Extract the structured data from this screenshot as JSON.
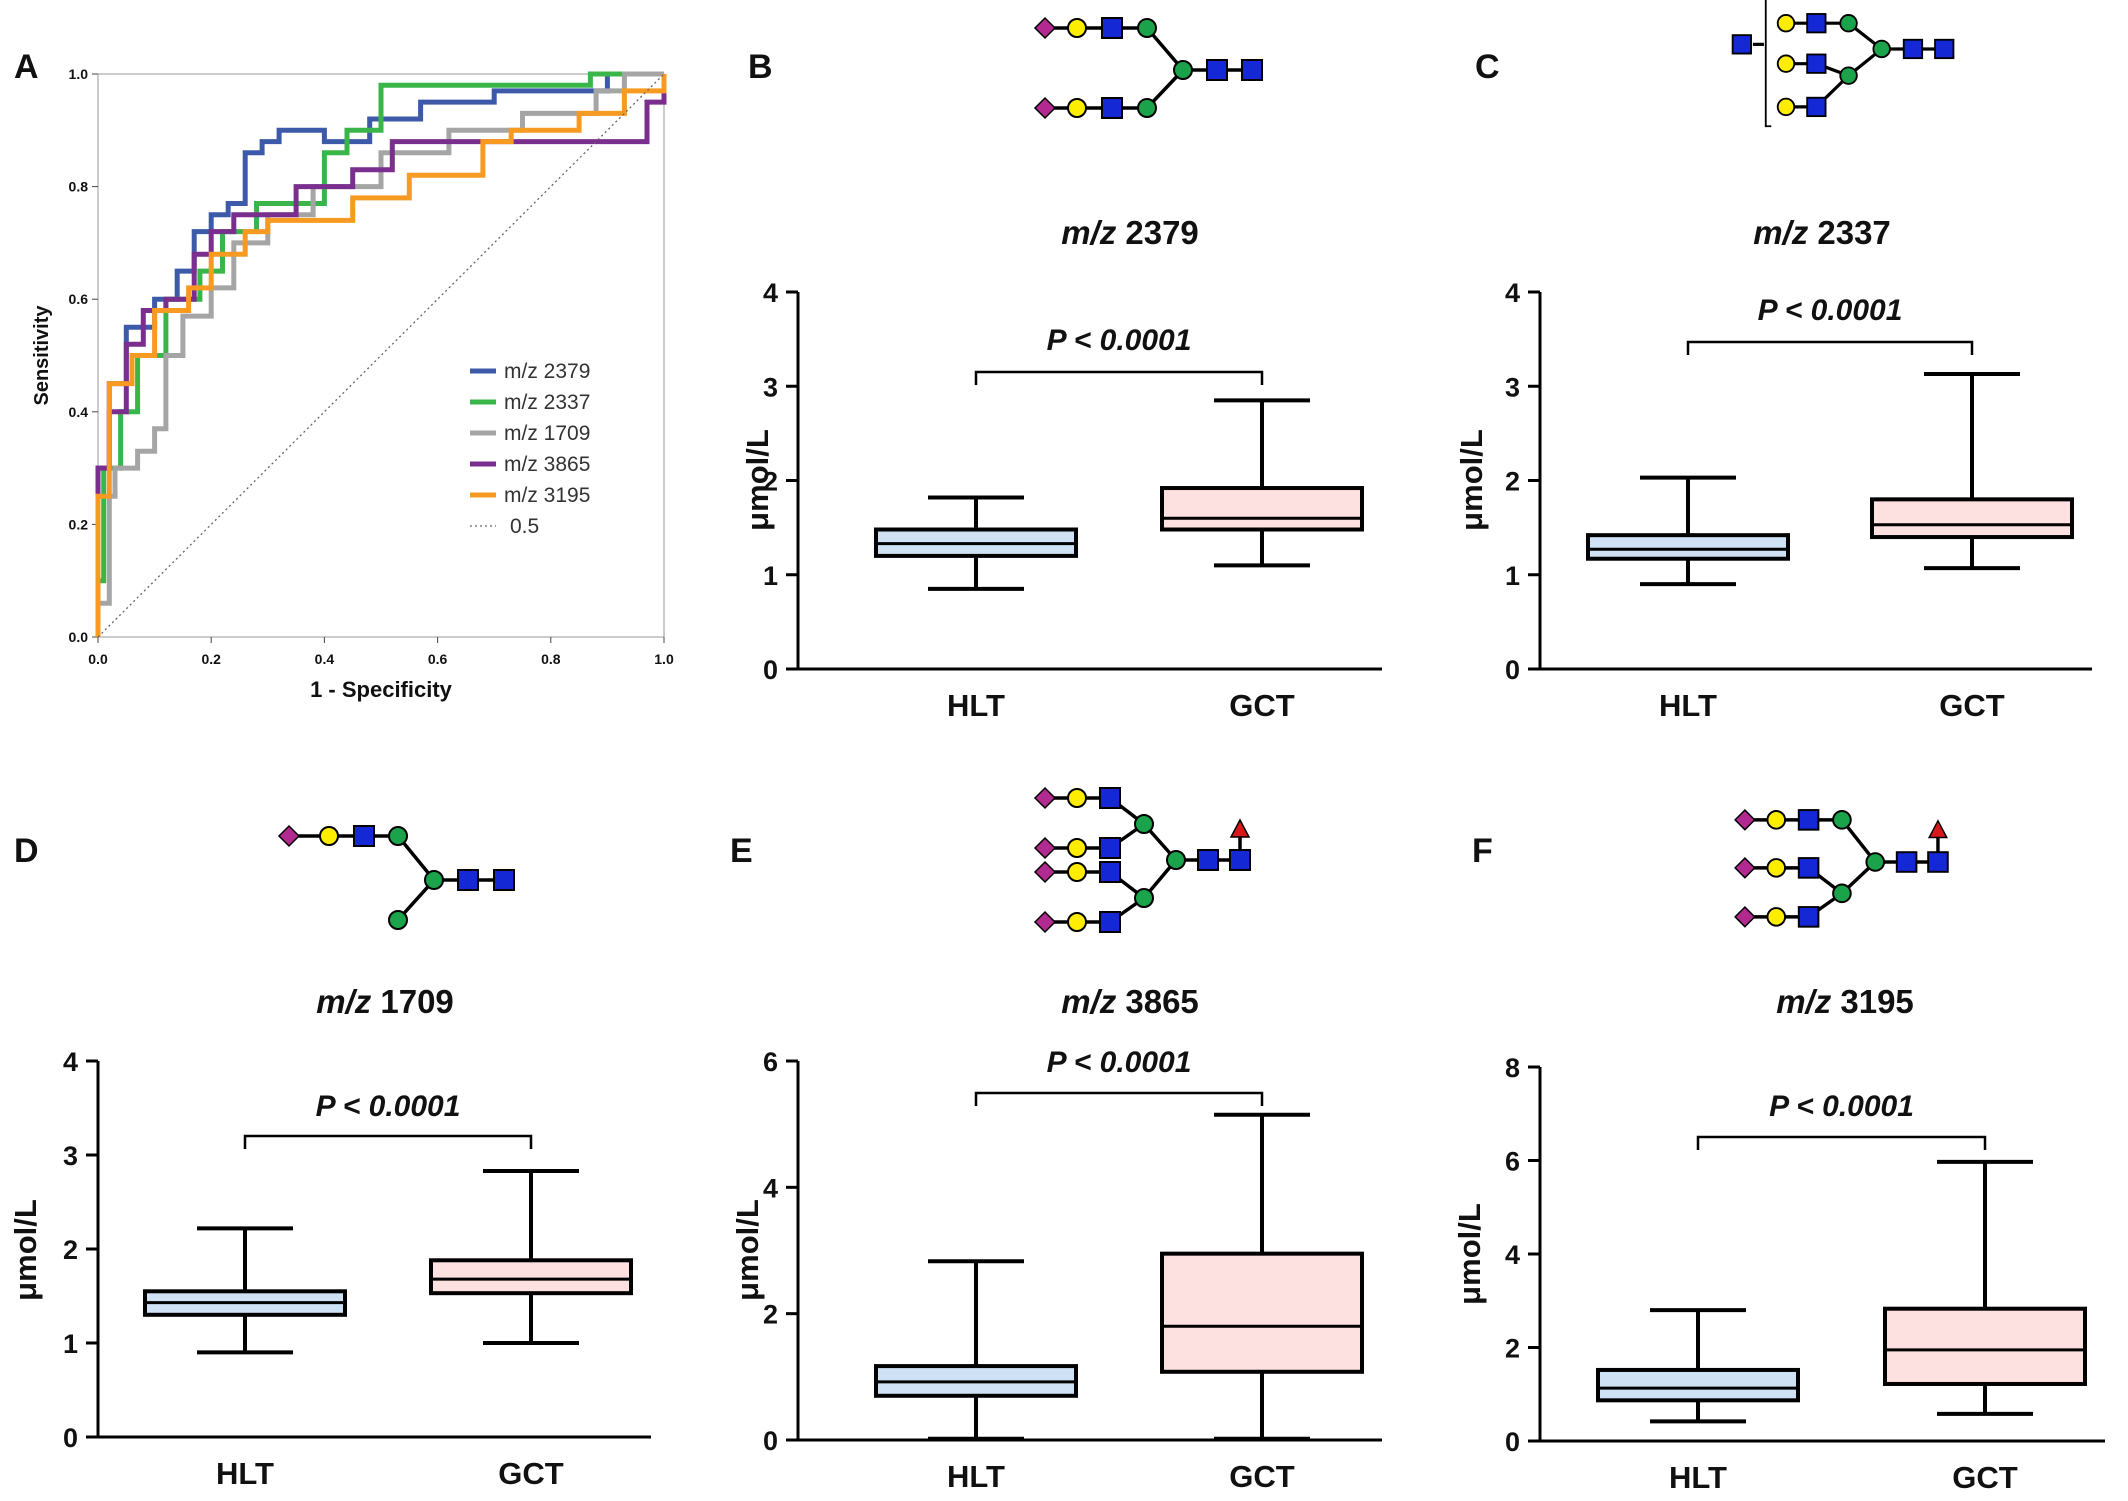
{
  "panel_letters": [
    "A",
    "B",
    "C",
    "D",
    "E",
    "F"
  ],
  "colors": {
    "m2379": "#3d5aa8",
    "m2337": "#3ab54a",
    "m1709": "#a5a5a5",
    "m3865": "#7a2e8e",
    "m3195": "#f79a22",
    "hlt_box": "#cfe2f5",
    "gct_box": "#fde0e0",
    "sialic_acid": "#b22a8f",
    "galactose": "#ffed00",
    "glcnac": "#1428d6",
    "mannose": "#1aa34a",
    "fucose": "#d7191c"
  },
  "chart_data": [
    {
      "panel": "A",
      "type": "line",
      "xlabel": "1 - Specificity",
      "ylabel": "Sensitivity",
      "xlim": [
        0,
        1
      ],
      "ylim": [
        0,
        1
      ],
      "xticks": [
        "0.0",
        "0.2",
        "0.4",
        "0.6",
        "0.8",
        "1.0"
      ],
      "yticks": [
        "0.0",
        "0.2",
        "0.4",
        "0.6",
        "0.8",
        "1.0"
      ],
      "legend_position": "bottom-right",
      "series": [
        {
          "name": "m/z 2379",
          "color_key": "m2379",
          "points": [
            [
              0,
              0
            ],
            [
              0,
              0.3
            ],
            [
              0.02,
              0.3
            ],
            [
              0.02,
              0.45
            ],
            [
              0.05,
              0.45
            ],
            [
              0.05,
              0.55
            ],
            [
              0.1,
              0.55
            ],
            [
              0.1,
              0.6
            ],
            [
              0.14,
              0.6
            ],
            [
              0.14,
              0.65
            ],
            [
              0.17,
              0.65
            ],
            [
              0.17,
              0.72
            ],
            [
              0.2,
              0.72
            ],
            [
              0.2,
              0.75
            ],
            [
              0.23,
              0.75
            ],
            [
              0.23,
              0.77
            ],
            [
              0.26,
              0.77
            ],
            [
              0.26,
              0.86
            ],
            [
              0.29,
              0.86
            ],
            [
              0.29,
              0.88
            ],
            [
              0.32,
              0.88
            ],
            [
              0.32,
              0.9
            ],
            [
              0.4,
              0.9
            ],
            [
              0.4,
              0.88
            ],
            [
              0.48,
              0.88
            ],
            [
              0.48,
              0.92
            ],
            [
              0.57,
              0.92
            ],
            [
              0.57,
              0.95
            ],
            [
              0.7,
              0.95
            ],
            [
              0.7,
              0.97
            ],
            [
              0.9,
              0.97
            ],
            [
              0.9,
              1
            ],
            [
              1,
              1
            ]
          ]
        },
        {
          "name": "m/z 2337",
          "color_key": "m2337",
          "points": [
            [
              0,
              0
            ],
            [
              0,
              0.1
            ],
            [
              0.01,
              0.1
            ],
            [
              0.01,
              0.3
            ],
            [
              0.04,
              0.3
            ],
            [
              0.04,
              0.4
            ],
            [
              0.07,
              0.4
            ],
            [
              0.07,
              0.5
            ],
            [
              0.12,
              0.5
            ],
            [
              0.12,
              0.6
            ],
            [
              0.18,
              0.6
            ],
            [
              0.18,
              0.65
            ],
            [
              0.22,
              0.65
            ],
            [
              0.22,
              0.72
            ],
            [
              0.28,
              0.72
            ],
            [
              0.28,
              0.77
            ],
            [
              0.4,
              0.77
            ],
            [
              0.4,
              0.86
            ],
            [
              0.44,
              0.86
            ],
            [
              0.44,
              0.9
            ],
            [
              0.5,
              0.9
            ],
            [
              0.5,
              0.98
            ],
            [
              0.87,
              0.98
            ],
            [
              0.87,
              1
            ],
            [
              1,
              1
            ]
          ]
        },
        {
          "name": "m/z 1709",
          "color_key": "m1709",
          "points": [
            [
              0,
              0
            ],
            [
              0,
              0.06
            ],
            [
              0.02,
              0.06
            ],
            [
              0.02,
              0.25
            ],
            [
              0.03,
              0.25
            ],
            [
              0.03,
              0.3
            ],
            [
              0.07,
              0.3
            ],
            [
              0.07,
              0.33
            ],
            [
              0.1,
              0.33
            ],
            [
              0.1,
              0.37
            ],
            [
              0.12,
              0.37
            ],
            [
              0.12,
              0.5
            ],
            [
              0.15,
              0.5
            ],
            [
              0.15,
              0.57
            ],
            [
              0.2,
              0.57
            ],
            [
              0.2,
              0.62
            ],
            [
              0.24,
              0.62
            ],
            [
              0.24,
              0.7
            ],
            [
              0.3,
              0.7
            ],
            [
              0.3,
              0.75
            ],
            [
              0.38,
              0.75
            ],
            [
              0.38,
              0.8
            ],
            [
              0.5,
              0.8
            ],
            [
              0.5,
              0.86
            ],
            [
              0.62,
              0.86
            ],
            [
              0.62,
              0.9
            ],
            [
              0.75,
              0.9
            ],
            [
              0.75,
              0.93
            ],
            [
              0.88,
              0.93
            ],
            [
              0.88,
              0.97
            ],
            [
              0.93,
              0.97
            ],
            [
              0.93,
              1
            ],
            [
              1,
              1
            ]
          ]
        },
        {
          "name": "m/z 3865",
          "color_key": "m3865",
          "points": [
            [
              0,
              0
            ],
            [
              0,
              0.3
            ],
            [
              0.02,
              0.3
            ],
            [
              0.02,
              0.4
            ],
            [
              0.05,
              0.4
            ],
            [
              0.05,
              0.52
            ],
            [
              0.08,
              0.52
            ],
            [
              0.08,
              0.58
            ],
            [
              0.12,
              0.58
            ],
            [
              0.12,
              0.6
            ],
            [
              0.17,
              0.6
            ],
            [
              0.17,
              0.68
            ],
            [
              0.2,
              0.68
            ],
            [
              0.2,
              0.72
            ],
            [
              0.24,
              0.72
            ],
            [
              0.24,
              0.75
            ],
            [
              0.35,
              0.75
            ],
            [
              0.35,
              0.8
            ],
            [
              0.45,
              0.8
            ],
            [
              0.45,
              0.83
            ],
            [
              0.52,
              0.83
            ],
            [
              0.52,
              0.88
            ],
            [
              0.66,
              0.88
            ],
            [
              0.66,
              0.88
            ],
            [
              0.88,
              0.88
            ],
            [
              0.88,
              0.88
            ],
            [
              0.97,
              0.88
            ],
            [
              0.97,
              0.95
            ],
            [
              1,
              0.95
            ],
            [
              1,
              1
            ]
          ]
        },
        {
          "name": "m/z 3195",
          "color_key": "m3195",
          "points": [
            [
              0,
              0
            ],
            [
              0,
              0.25
            ],
            [
              0.02,
              0.25
            ],
            [
              0.02,
              0.45
            ],
            [
              0.06,
              0.45
            ],
            [
              0.06,
              0.5
            ],
            [
              0.1,
              0.5
            ],
            [
              0.1,
              0.58
            ],
            [
              0.16,
              0.58
            ],
            [
              0.16,
              0.62
            ],
            [
              0.2,
              0.62
            ],
            [
              0.2,
              0.68
            ],
            [
              0.26,
              0.68
            ],
            [
              0.26,
              0.72
            ],
            [
              0.3,
              0.72
            ],
            [
              0.3,
              0.74
            ],
            [
              0.45,
              0.74
            ],
            [
              0.45,
              0.78
            ],
            [
              0.55,
              0.78
            ],
            [
              0.55,
              0.82
            ],
            [
              0.68,
              0.82
            ],
            [
              0.68,
              0.88
            ],
            [
              0.73,
              0.88
            ],
            [
              0.73,
              0.9
            ],
            [
              0.85,
              0.9
            ],
            [
              0.85,
              0.93
            ],
            [
              0.93,
              0.93
            ],
            [
              0.93,
              0.97
            ],
            [
              1,
              0.97
            ],
            [
              1,
              1
            ]
          ]
        },
        {
          "name": "0.5",
          "color_key": "m1709",
          "dashed": true,
          "points": [
            [
              0,
              0
            ],
            [
              1,
              1
            ]
          ]
        }
      ]
    },
    {
      "panel": "B",
      "type": "box",
      "title_italic": "m/z",
      "title_number": "2379",
      "ylabel": "μmol/L",
      "ylim": [
        0,
        4
      ],
      "yticks": [
        "0",
        "1",
        "2",
        "3",
        "4"
      ],
      "annotation": "P < 0.0001",
      "groups": [
        {
          "name": "HLT",
          "min": 0.85,
          "q1": 1.2,
          "median": 1.33,
          "q3": 1.48,
          "max": 1.82
        },
        {
          "name": "GCT",
          "min": 1.1,
          "q1": 1.48,
          "median": 1.6,
          "q3": 1.92,
          "max": 2.85
        }
      ]
    },
    {
      "panel": "C",
      "type": "box",
      "title_italic": "m/z",
      "title_number": "2337",
      "ylabel": "μmol/L",
      "ylim": [
        0,
        4
      ],
      "yticks": [
        "0",
        "1",
        "2",
        "3",
        "4"
      ],
      "annotation": "P < 0.0001",
      "groups": [
        {
          "name": "HLT",
          "min": 0.9,
          "q1": 1.17,
          "median": 1.27,
          "q3": 1.42,
          "max": 2.03
        },
        {
          "name": "GCT",
          "min": 1.07,
          "q1": 1.4,
          "median": 1.53,
          "q3": 1.8,
          "max": 3.13
        }
      ]
    },
    {
      "panel": "D",
      "type": "box",
      "title_italic": "m/z",
      "title_number": "1709",
      "ylabel": "μmol/L",
      "ylim": [
        0,
        4
      ],
      "yticks": [
        "0",
        "1",
        "2",
        "3",
        "4"
      ],
      "annotation": "P < 0.0001",
      "groups": [
        {
          "name": "HLT",
          "min": 0.9,
          "q1": 1.3,
          "median": 1.43,
          "q3": 1.55,
          "max": 2.22
        },
        {
          "name": "GCT",
          "min": 1.0,
          "q1": 1.53,
          "median": 1.68,
          "q3": 1.88,
          "max": 2.83
        }
      ]
    },
    {
      "panel": "E",
      "type": "box",
      "title_italic": "m/z",
      "title_number": "3865",
      "ylabel": "μmol/L",
      "ylim": [
        0,
        6
      ],
      "yticks": [
        "0",
        "2",
        "4",
        "6"
      ],
      "annotation": "P < 0.0001",
      "groups": [
        {
          "name": "HLT",
          "min": 0.02,
          "q1": 0.7,
          "median": 0.92,
          "q3": 1.17,
          "max": 2.83
        },
        {
          "name": "GCT",
          "min": 0.02,
          "q1": 1.08,
          "median": 1.8,
          "q3": 2.95,
          "max": 5.15
        }
      ]
    },
    {
      "panel": "F",
      "type": "box",
      "title_italic": "m/z",
      "title_number": "3195",
      "ylabel": "μmol/L",
      "ylim": [
        0,
        8
      ],
      "yticks": [
        "0",
        "2",
        "4",
        "6",
        "8"
      ],
      "annotation": "P < 0.0001",
      "groups": [
        {
          "name": "HLT",
          "min": 0.42,
          "q1": 0.87,
          "median": 1.13,
          "q3": 1.52,
          "max": 2.8
        },
        {
          "name": "GCT",
          "min": 0.58,
          "q1": 1.22,
          "median": 1.95,
          "q3": 2.83,
          "max": 5.97
        }
      ]
    }
  ]
}
